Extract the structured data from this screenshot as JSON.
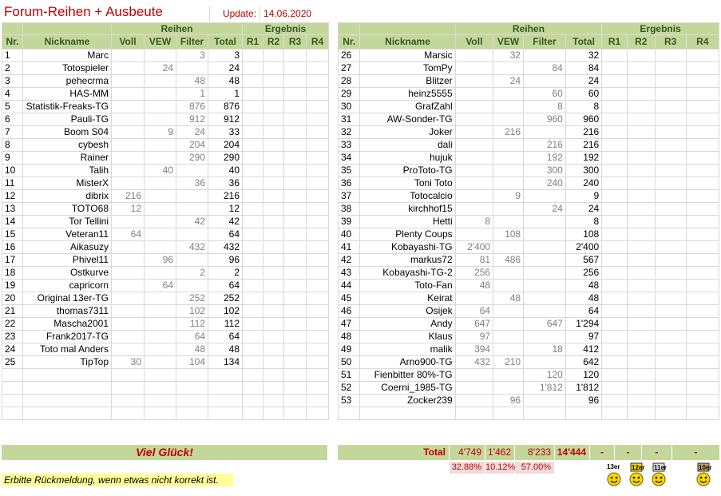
{
  "title": "Forum-Reihen + Ausbeute",
  "update_label": "Update:",
  "update_date": "14.06.2020",
  "headers": {
    "reihen": "Reihen",
    "ergebnis": "Ergebnis",
    "nr": "Nr.",
    "nickname": "Nickname",
    "voll": "Voll",
    "vew": "VEW",
    "filter": "Filter",
    "total": "Total",
    "r1": "R1",
    "r2": "R2",
    "r3": "R3",
    "r4": "R4"
  },
  "left_rows": [
    [
      "1",
      "Marc",
      "",
      "",
      "3",
      "3"
    ],
    [
      "2",
      "Totospieler",
      "",
      "24",
      "",
      "24"
    ],
    [
      "3",
      "pehecrma",
      "",
      "",
      "48",
      "48"
    ],
    [
      "4",
      "HAS-MM",
      "",
      "",
      "1",
      "1"
    ],
    [
      "5",
      "Statistik-Freaks-TG",
      "",
      "",
      "876",
      "876"
    ],
    [
      "6",
      "Pauli-TG",
      "",
      "",
      "912",
      "912"
    ],
    [
      "7",
      "Boom S04",
      "",
      "9",
      "24",
      "33"
    ],
    [
      "8",
      "cybesh",
      "",
      "",
      "204",
      "204"
    ],
    [
      "9",
      "Rainer",
      "",
      "",
      "290",
      "290"
    ],
    [
      "10",
      "Talih",
      "",
      "40",
      "",
      "40"
    ],
    [
      "11",
      "MisterX",
      "",
      "",
      "36",
      "36"
    ],
    [
      "12",
      "dibrix",
      "216",
      "",
      "",
      "216"
    ],
    [
      "13",
      "TOTO68",
      "12",
      "",
      "",
      "12"
    ],
    [
      "14",
      "Tor Tellini",
      "",
      "",
      "42",
      "42"
    ],
    [
      "15",
      "Veteran11",
      "64",
      "",
      "",
      "64"
    ],
    [
      "16",
      "Aikasuzy",
      "",
      "",
      "432",
      "432"
    ],
    [
      "17",
      "Phivel11",
      "",
      "96",
      "",
      "96"
    ],
    [
      "18",
      "Ostkurve",
      "",
      "",
      "2",
      "2"
    ],
    [
      "19",
      "capricorn",
      "",
      "64",
      "",
      "64"
    ],
    [
      "20",
      "Original 13er-TG",
      "",
      "",
      "252",
      "252"
    ],
    [
      "21",
      "thomas7311",
      "",
      "",
      "102",
      "102"
    ],
    [
      "22",
      "Mascha2001",
      "",
      "",
      "112",
      "112"
    ],
    [
      "23",
      "Frank2017-TG",
      "",
      "",
      "64",
      "64"
    ],
    [
      "24",
      "Toto mal Anders",
      "",
      "",
      "48",
      "48"
    ],
    [
      "25",
      "TipTop",
      "30",
      "",
      "104",
      "134"
    ]
  ],
  "right_rows": [
    [
      "26",
      "Marsic",
      "",
      "32",
      "",
      "32"
    ],
    [
      "27",
      "TomPy",
      "",
      "",
      "84",
      "84"
    ],
    [
      "28",
      "Blitzer",
      "",
      "24",
      "",
      "24"
    ],
    [
      "29",
      "heinz5555",
      "",
      "",
      "60",
      "60"
    ],
    [
      "30",
      "GrafZahl",
      "",
      "",
      "8",
      "8"
    ],
    [
      "31",
      "AW-Sonder-TG",
      "",
      "",
      "960",
      "960"
    ],
    [
      "32",
      "Joker",
      "",
      "216",
      "",
      "216"
    ],
    [
      "33",
      "dali",
      "",
      "",
      "216",
      "216"
    ],
    [
      "34",
      "hujuk",
      "",
      "",
      "192",
      "192"
    ],
    [
      "35",
      "ProToto-TG",
      "",
      "",
      "300",
      "300"
    ],
    [
      "36",
      "Toni Toto",
      "",
      "",
      "240",
      "240"
    ],
    [
      "37",
      "Totocalcio",
      "",
      "9",
      "",
      "9"
    ],
    [
      "38",
      "kirchhof15",
      "",
      "",
      "24",
      "24"
    ],
    [
      "39",
      "Hetti",
      "8",
      "",
      "",
      "8"
    ],
    [
      "40",
      "Plenty Coups",
      "",
      "108",
      "",
      "108"
    ],
    [
      "41",
      "Kobayashi-TG",
      "2'400",
      "",
      "",
      "2'400"
    ],
    [
      "42",
      "markus72",
      "81",
      "486",
      "",
      "567"
    ],
    [
      "43",
      "Kobayashi-TG-2",
      "256",
      "",
      "",
      "256"
    ],
    [
      "44",
      "Toto-Fan",
      "48",
      "",
      "",
      "48"
    ],
    [
      "45",
      "Keirat",
      "",
      "48",
      "",
      "48"
    ],
    [
      "46",
      "Osijek",
      "64",
      "",
      "",
      "64"
    ],
    [
      "47",
      "Andy",
      "647",
      "",
      "647",
      "1'294"
    ],
    [
      "48",
      "Klaus",
      "97",
      "",
      "",
      "97"
    ],
    [
      "49",
      "malik",
      "394",
      "",
      "18",
      "412"
    ],
    [
      "50",
      "Arno900-TG",
      "432",
      "210",
      "",
      "642"
    ],
    [
      "51",
      "Fienbitter 80%-TG",
      "",
      "",
      "120",
      "120"
    ],
    [
      "52",
      "Coerni_1985-TG",
      "",
      "",
      "1'812",
      "1'812"
    ],
    [
      "53",
      "Zocker239",
      "",
      "96",
      "",
      "96"
    ]
  ],
  "viel_glueck": "Viel Glück!",
  "totals": {
    "label": "Total",
    "voll": "4'749",
    "vew": "1'462",
    "filter": "8'233",
    "total": "14'444",
    "r1": "-",
    "r2": "-",
    "r3": "-",
    "r4": "-"
  },
  "percentages": {
    "voll": "32.88%",
    "vew": "10.12%",
    "filter": "57.00%"
  },
  "note": "Erbitte Rückmeldung, wenn etwas nicht korrekt ist.",
  "smileys": [
    "13er",
    "12er",
    "11er",
    "10er"
  ],
  "colors": {
    "header_green": "#c4d79b",
    "title_red": "#c00000",
    "note_yellow": "#ffff99",
    "percent_pink": "#f2dcdb"
  }
}
